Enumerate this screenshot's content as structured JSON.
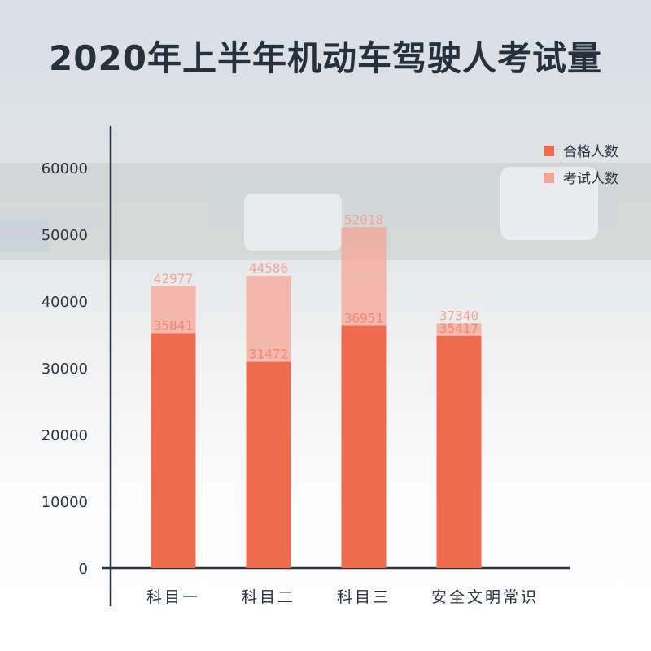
{
  "chart_data": {
    "type": "bar",
    "title": "2020年上半年机动车驾驶人考试量",
    "categories": [
      "科目一",
      "科目二",
      "科目三",
      "安全文明常识"
    ],
    "series": [
      {
        "name": "合格人数",
        "values": [
          35841,
          31472,
          36951,
          35417
        ],
        "color": "#f06a52"
      },
      {
        "name": "考试人数",
        "values": [
          42977,
          44586,
          52018,
          37340
        ],
        "color": "#f4a494"
      }
    ],
    "yticks": [
      "0",
      "10000",
      "20000",
      "30000",
      "40000",
      "50000",
      "60000"
    ],
    "ylim": [
      0,
      65000
    ],
    "grid": false,
    "legend": "top-right",
    "overlay": true
  }
}
